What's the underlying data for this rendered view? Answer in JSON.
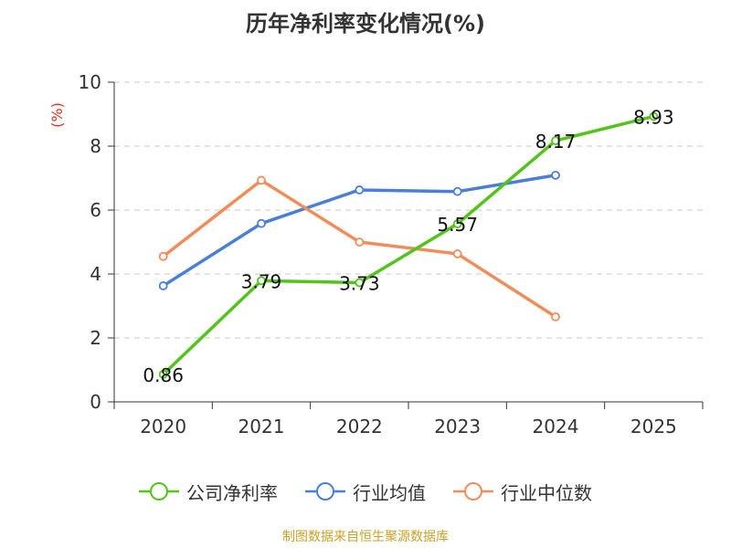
{
  "chart_data": {
    "type": "line",
    "title": "历年净利率变化情况(%)",
    "ylabel": "(%)",
    "xlabel": "",
    "categories": [
      "2020",
      "2021",
      "2022",
      "2023",
      "2024",
      "2025"
    ],
    "ylim": [
      0,
      10
    ],
    "yticks": [
      0,
      2,
      4,
      6,
      8,
      10
    ],
    "grid": true,
    "legend_position": "bottom",
    "series": [
      {
        "name": "公司净利率",
        "color": "#52c41a",
        "values": [
          0.86,
          3.79,
          3.73,
          5.57,
          8.17,
          8.93
        ],
        "data_labels": [
          "0.86",
          "3.79",
          "3.73",
          "5.57",
          "8.17",
          "8.93"
        ]
      },
      {
        "name": "行业均值",
        "color": "#4a7fd9",
        "values": [
          3.63,
          5.58,
          6.63,
          6.58,
          7.09,
          null
        ]
      },
      {
        "name": "行业中位数",
        "color": "#f28c5a",
        "values": [
          4.55,
          6.93,
          5.0,
          4.63,
          2.66,
          null
        ]
      }
    ]
  },
  "source_text": "制图数据来自恒生聚源数据库"
}
